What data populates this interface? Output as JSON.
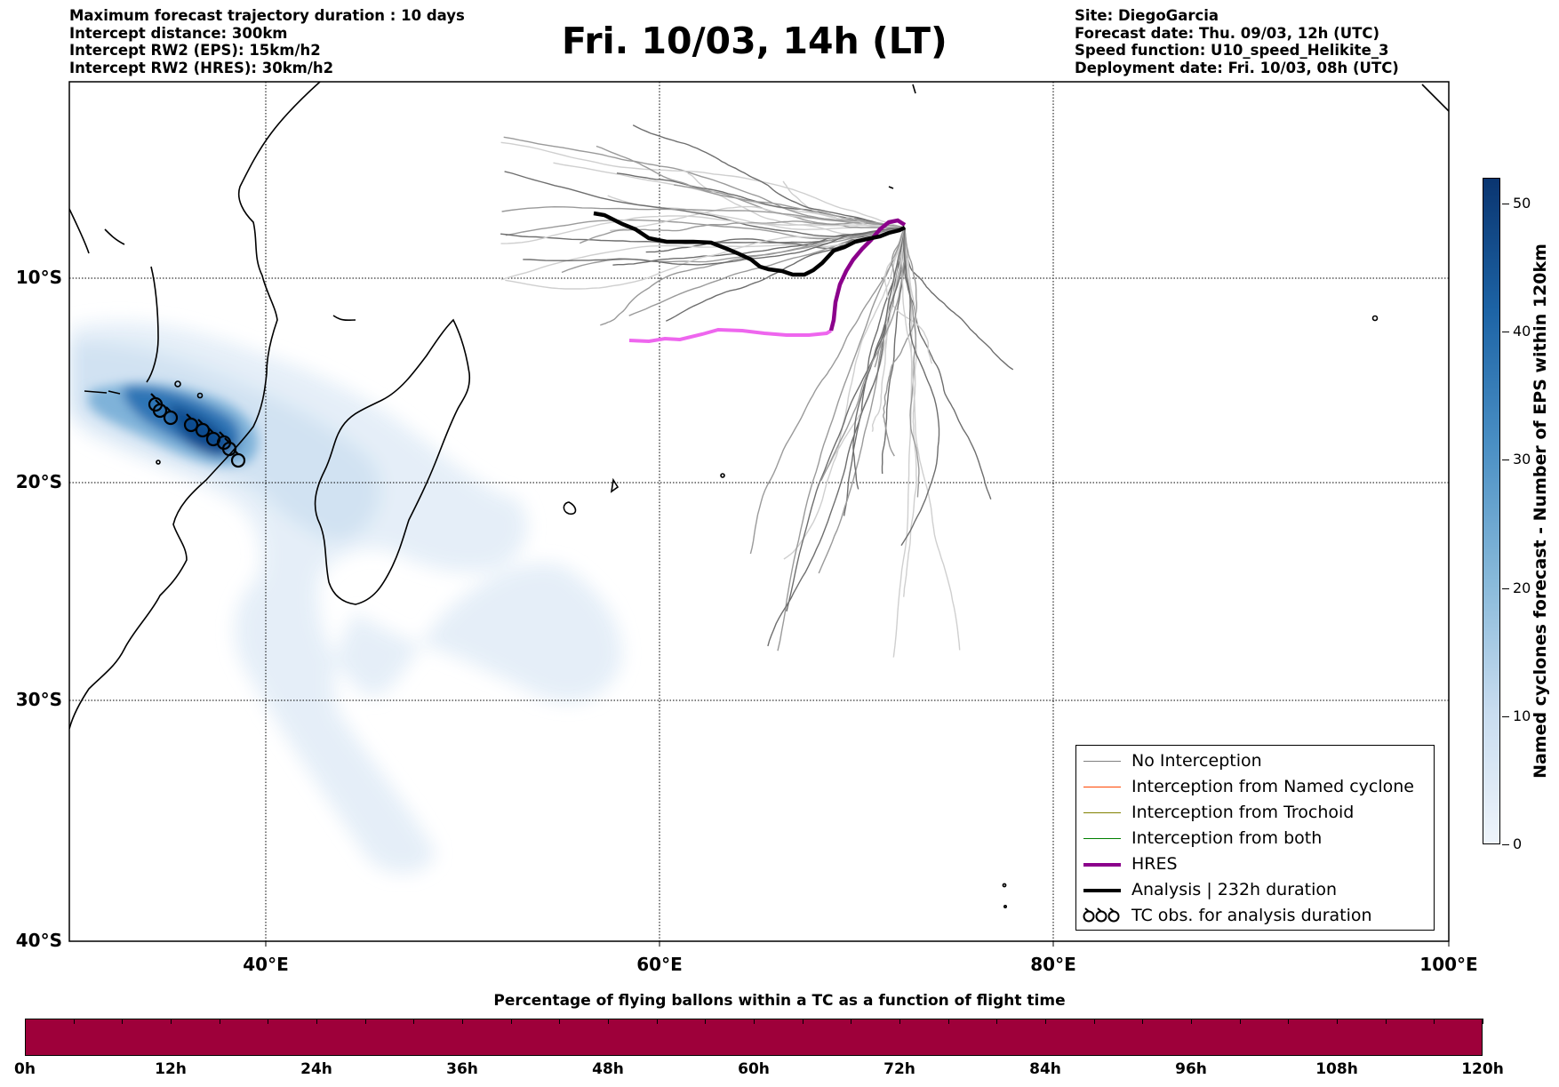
{
  "header_left": [
    "Maximum forecast trajectory duration : 10 days",
    "Intercept distance: 300km",
    "Intercept RW2 (EPS):  15km/h2",
    "Intercept RW2 (HRES): 30km/h2"
  ],
  "title": "Fri. 10/03, 14h (LT)",
  "header_right": [
    "Site: DiegoGarcia",
    "Forecast date: Thu. 09/03, 12h (UTC)",
    "Speed function: U10_speed_Helikite_3",
    "Deployment date: Fri. 10/03, 08h (UTC)"
  ],
  "map": {
    "lon_range": [
      30,
      100
    ],
    "lat_range": [
      -40,
      -1
    ],
    "lat_labels": [
      "10°S",
      "20°S",
      "30°S",
      "40°S"
    ],
    "lon_labels": [
      "40°E",
      "60°E",
      "80°E",
      "100°E"
    ],
    "colors": {
      "hres": "#8b008b",
      "hres_light": "#ee66ee",
      "analysis": "#000000",
      "eps": "#777777"
    }
  },
  "legend": [
    {
      "label": "No Interception",
      "color": "#808080",
      "width": 1.5,
      "icon": "line"
    },
    {
      "label": "Interception from Named cyclone",
      "color": "#ff4500",
      "width": 1.5,
      "icon": "line"
    },
    {
      "label": "Interception from Trochoid",
      "color": "#808000",
      "width": 1.5,
      "icon": "line"
    },
    {
      "label": "Interception from both",
      "color": "#008000",
      "width": 1.5,
      "icon": "line"
    },
    {
      "label": "HRES",
      "color": "#8b008b",
      "width": 4,
      "icon": "line"
    },
    {
      "label": "Analysis | 232h duration",
      "color": "#000000",
      "width": 4,
      "icon": "line"
    },
    {
      "label": "TC obs. for analysis duration",
      "color": "#000000",
      "width": 2,
      "icon": "cyclone-symbols"
    }
  ],
  "colorbar": {
    "title": "Named cyclones forecast - Number of EPS within 120km",
    "ticks": [
      "0",
      "10",
      "20",
      "30",
      "40",
      "50"
    ],
    "min": 0,
    "max": 52
  },
  "bottom_bar": {
    "title": "Percentage of flying ballons within a TC as a function of flight time",
    "ticks": [
      "0h",
      "12h",
      "24h",
      "36h",
      "48h",
      "60h",
      "72h",
      "84h",
      "96h",
      "108h",
      "120h"
    ],
    "color": "#9e003a"
  }
}
